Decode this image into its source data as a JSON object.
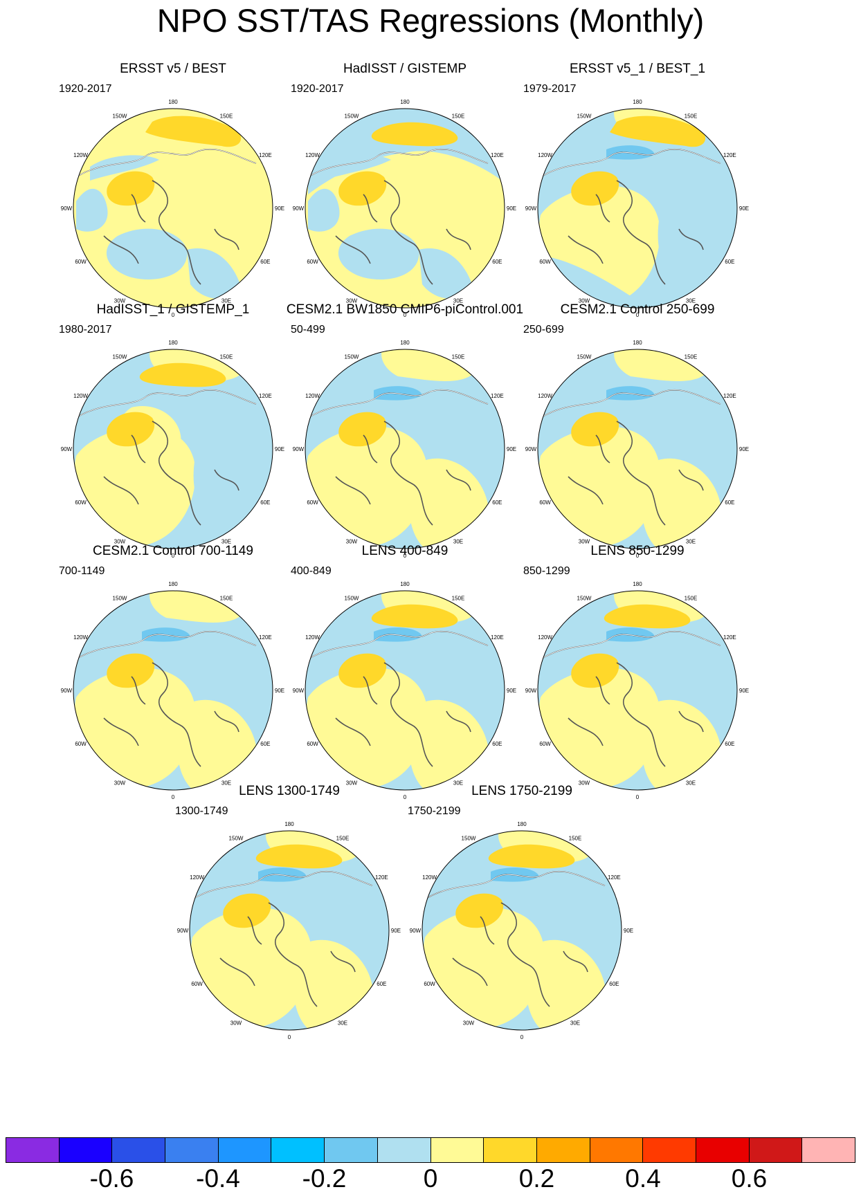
{
  "title": "NPO SST/TAS Regressions (Monthly)",
  "longitude_labels": [
    "180",
    "150E",
    "120E",
    "90E",
    "60E",
    "30E",
    "0",
    "30W",
    "60W",
    "90W",
    "120W",
    "150W"
  ],
  "panels": [
    {
      "title": "ERSST v5 / BEST",
      "period": "1920-2017"
    },
    {
      "title": "HadISST / GISTEMP",
      "period": "1920-2017"
    },
    {
      "title": "ERSST v5_1 / BEST_1",
      "period": "1979-2017"
    },
    {
      "title": "HadISST_1 / GISTEMP_1",
      "period": "1980-2017"
    },
    {
      "title": "CESM2.1 BW1850 CMIP6-piControl.001",
      "period": "50-499"
    },
    {
      "title": "CESM2.1 Control 250-699",
      "period": "250-699"
    },
    {
      "title": "CESM2.1 Control 700-1149",
      "period": "700-1149"
    },
    {
      "title": "LENS 400-849",
      "period": "400-849"
    },
    {
      "title": "LENS 850-1299",
      "period": "850-1299"
    },
    {
      "title": "LENS 1300-1749",
      "period": "1300-1749"
    },
    {
      "title": "LENS 1750-2199",
      "period": "1750-2199"
    }
  ],
  "colorbar": {
    "colors": [
      "#8a2be2",
      "#1a00ff",
      "#2a50e8",
      "#3a80f0",
      "#1e96ff",
      "#00c0ff",
      "#70c8f0",
      "#b0e0f0",
      "#fffa96",
      "#ffd82a",
      "#ffaa00",
      "#ff7800",
      "#ff3a00",
      "#e80000",
      "#d01818",
      "#ffb4b4"
    ],
    "labels": [
      "-0.6",
      "-0.4",
      "-0.2",
      "0",
      "0.2",
      "0.4",
      "0.6"
    ],
    "label_boundaries": [
      2,
      4,
      6,
      8,
      10,
      12,
      14
    ]
  }
}
